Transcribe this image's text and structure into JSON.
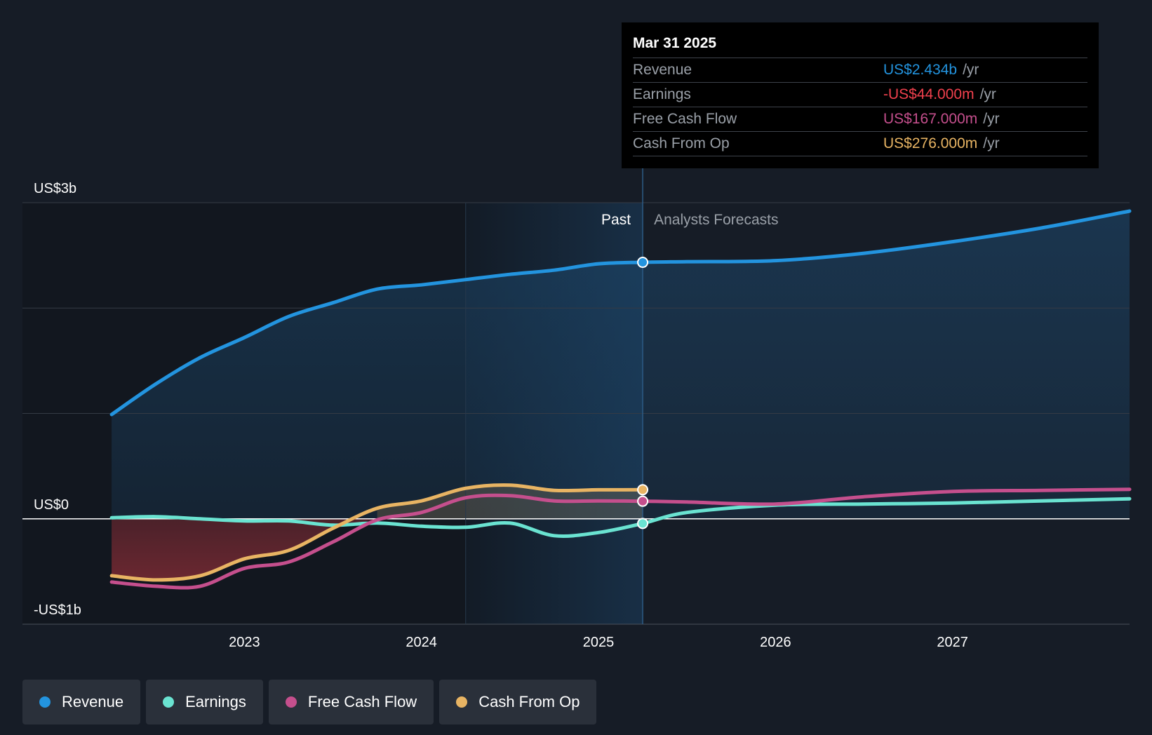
{
  "colors": {
    "background": "#161c26",
    "revenue": "#2394df",
    "earnings": "#6ae3d1",
    "free_cash_flow": "#c54f8d",
    "cash_from_op": "#e8b463",
    "loss_fill": "#7a2a33",
    "past_highlight": "#1d4a70"
  },
  "tooltip": {
    "date": "Mar 31 2025",
    "unit": "/yr",
    "rows": [
      {
        "label": "Revenue",
        "value": "US$2.434b",
        "color": "#2394df"
      },
      {
        "label": "Earnings",
        "value": "-US$44.000m",
        "color": "#f0404d"
      },
      {
        "label": "Free Cash Flow",
        "value": "US$167.000m",
        "color": "#c54f8d"
      },
      {
        "label": "Cash From Op",
        "value": "US$276.000m",
        "color": "#e8b463"
      }
    ]
  },
  "legend": [
    {
      "label": "Revenue",
      "color": "#2394df"
    },
    {
      "label": "Earnings",
      "color": "#6ae3d1"
    },
    {
      "label": "Free Cash Flow",
      "color": "#c54f8d"
    },
    {
      "label": "Cash From Op",
      "color": "#e8b463"
    }
  ],
  "chart_data": {
    "type": "line",
    "title": "",
    "y_unit": "US$ billions",
    "y_tick_labels": [
      {
        "value": 3,
        "label": "US$3b"
      },
      {
        "value": 0,
        "label": "US$0"
      },
      {
        "value": -1,
        "label": "-US$1b"
      }
    ],
    "ylim": [
      -1,
      3
    ],
    "xlim": [
      2022.0,
      2028.0
    ],
    "x_tick_labels": [
      "2023",
      "2024",
      "2025",
      "2026",
      "2027"
    ],
    "x_ticks": [
      2023,
      2024,
      2025,
      2026,
      2027
    ],
    "grid": true,
    "past_label": "Past",
    "forecast_label": "Analysts Forecasts",
    "divider_x": 2025.25,
    "highlight_start_x": 2024.25,
    "series": [
      {
        "name": "Revenue",
        "key": "revenue",
        "points": [
          [
            2022.25,
            0.99
          ],
          [
            2022.5,
            1.28
          ],
          [
            2022.75,
            1.53
          ],
          [
            2023.0,
            1.72
          ],
          [
            2023.25,
            1.92
          ],
          [
            2023.5,
            2.05
          ],
          [
            2023.75,
            2.18
          ],
          [
            2024.0,
            2.22
          ],
          [
            2024.25,
            2.27
          ],
          [
            2024.5,
            2.32
          ],
          [
            2024.75,
            2.36
          ],
          [
            2025.0,
            2.42
          ],
          [
            2025.25,
            2.434
          ],
          [
            2025.5,
            2.44
          ],
          [
            2026.0,
            2.45
          ],
          [
            2026.5,
            2.52
          ],
          [
            2027.0,
            2.63
          ],
          [
            2027.5,
            2.76
          ],
          [
            2028.0,
            2.92
          ]
        ],
        "forecast_from": 2025.25
      },
      {
        "name": "Earnings",
        "key": "earnings",
        "points": [
          [
            2022.25,
            0.01
          ],
          [
            2022.5,
            0.02
          ],
          [
            2022.75,
            0.0
          ],
          [
            2023.0,
            -0.02
          ],
          [
            2023.25,
            -0.02
          ],
          [
            2023.5,
            -0.06
          ],
          [
            2023.75,
            -0.04
          ],
          [
            2024.0,
            -0.07
          ],
          [
            2024.25,
            -0.08
          ],
          [
            2024.5,
            -0.04
          ],
          [
            2024.75,
            -0.16
          ],
          [
            2025.0,
            -0.13
          ],
          [
            2025.25,
            -0.044
          ],
          [
            2025.5,
            0.06
          ],
          [
            2026.0,
            0.13
          ],
          [
            2026.5,
            0.14
          ],
          [
            2027.0,
            0.15
          ],
          [
            2027.5,
            0.17
          ],
          [
            2028.0,
            0.19
          ]
        ],
        "forecast_from": 2025.25
      },
      {
        "name": "Free Cash Flow",
        "key": "free_cash_flow",
        "points": [
          [
            2022.25,
            -0.6
          ],
          [
            2022.5,
            -0.64
          ],
          [
            2022.75,
            -0.64
          ],
          [
            2023.0,
            -0.47
          ],
          [
            2023.25,
            -0.41
          ],
          [
            2023.5,
            -0.22
          ],
          [
            2023.75,
            -0.01
          ],
          [
            2024.0,
            0.06
          ],
          [
            2024.25,
            0.2
          ],
          [
            2024.5,
            0.22
          ],
          [
            2024.75,
            0.17
          ],
          [
            2025.0,
            0.17
          ],
          [
            2025.25,
            0.167
          ],
          [
            2025.5,
            0.16
          ],
          [
            2026.0,
            0.14
          ],
          [
            2026.5,
            0.21
          ],
          [
            2027.0,
            0.26
          ],
          [
            2027.5,
            0.27
          ],
          [
            2028.0,
            0.28
          ]
        ],
        "forecast_from": 2025.25
      },
      {
        "name": "Cash From Op",
        "key": "cash_from_op",
        "points": [
          [
            2022.25,
            -0.54
          ],
          [
            2022.5,
            -0.58
          ],
          [
            2022.75,
            -0.54
          ],
          [
            2023.0,
            -0.38
          ],
          [
            2023.25,
            -0.3
          ],
          [
            2023.5,
            -0.09
          ],
          [
            2023.75,
            0.1
          ],
          [
            2024.0,
            0.17
          ],
          [
            2024.25,
            0.29
          ],
          [
            2024.5,
            0.32
          ],
          [
            2024.75,
            0.27
          ],
          [
            2025.0,
            0.275
          ],
          [
            2025.25,
            0.276
          ]
        ],
        "forecast_from": null
      }
    ]
  }
}
